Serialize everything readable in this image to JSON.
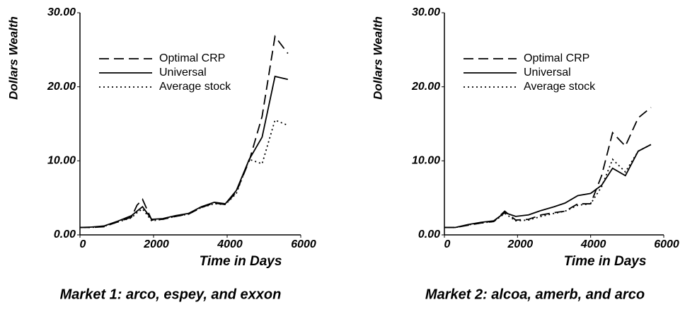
{
  "chart_data": [
    {
      "type": "line",
      "title": "Market 1: arco, espey, and exxon",
      "ylabel": "Dollars Wealth",
      "xlabel": "Time in Days",
      "x": [
        0,
        300,
        650,
        1000,
        1400,
        1550,
        1700,
        1950,
        2250,
        2600,
        2950,
        3300,
        3650,
        3950,
        4250,
        4600,
        4950,
        5300,
        5650
      ],
      "series": [
        {
          "name": "Optimal CRP",
          "color": "#000000",
          "style": "dashed",
          "values": [
            1.0,
            1.0,
            1.1,
            1.7,
            2.4,
            4.0,
            4.8,
            2.0,
            2.1,
            2.5,
            2.8,
            3.7,
            4.3,
            4.1,
            5.8,
            10.0,
            16.0,
            26.8,
            24.5
          ]
        },
        {
          "name": "Universal",
          "color": "#000000",
          "style": "solid",
          "values": [
            1.0,
            1.05,
            1.2,
            1.8,
            2.6,
            3.2,
            3.8,
            2.1,
            2.2,
            2.6,
            2.9,
            3.8,
            4.4,
            4.2,
            6.0,
            10.2,
            13.2,
            21.4,
            21.0
          ]
        },
        {
          "name": "Average stock",
          "color": "#000000",
          "style": "dotted",
          "values": [
            1.0,
            1.0,
            1.15,
            1.7,
            2.3,
            3.0,
            3.5,
            1.9,
            2.1,
            2.5,
            2.8,
            3.7,
            4.2,
            4.1,
            5.6,
            10.2,
            9.6,
            15.5,
            14.8
          ]
        }
      ],
      "xlim": [
        0,
        6000
      ],
      "xticks": [
        0,
        2000,
        4000,
        6000
      ],
      "ylim": [
        0,
        30
      ],
      "yticks": [
        {
          "value": 0,
          "label": "0.00"
        },
        {
          "value": 10,
          "label": "10.00"
        },
        {
          "value": 20,
          "label": "20.00"
        },
        {
          "value": 30,
          "label": "30.00"
        }
      ],
      "grid": false,
      "legend": "upper-left"
    },
    {
      "type": "line",
      "title": "Market 2: alcoa, amerb, and arco",
      "ylabel": "Dollars Wealth",
      "xlabel": "Time in Days",
      "x": [
        0,
        300,
        650,
        1000,
        1350,
        1650,
        1950,
        2300,
        2650,
        3000,
        3300,
        3650,
        4000,
        4300,
        4600,
        4950,
        5300,
        5650
      ],
      "series": [
        {
          "name": "Optimal CRP",
          "color": "#000000",
          "style": "dashed",
          "values": [
            1.0,
            1.0,
            1.3,
            1.6,
            1.8,
            3.2,
            2.0,
            2.1,
            2.7,
            3.0,
            3.2,
            4.2,
            4.2,
            8.0,
            13.8,
            12.0,
            15.8,
            17.2
          ]
        },
        {
          "name": "Universal",
          "color": "#000000",
          "style": "solid",
          "values": [
            1.0,
            1.0,
            1.4,
            1.7,
            1.9,
            3.0,
            2.5,
            2.7,
            3.3,
            3.8,
            4.3,
            5.3,
            5.6,
            6.7,
            9.0,
            8.0,
            11.3,
            12.2
          ]
        },
        {
          "name": "Average stock",
          "color": "#000000",
          "style": "dotted",
          "values": [
            1.0,
            1.0,
            1.35,
            1.6,
            1.8,
            2.9,
            1.9,
            2.0,
            2.5,
            2.9,
            3.2,
            4.0,
            4.2,
            6.5,
            10.2,
            8.5,
            11.3,
            12.2
          ]
        }
      ],
      "xlim": [
        0,
        6000
      ],
      "xticks": [
        0,
        2000,
        4000,
        6000
      ],
      "ylim": [
        0,
        30
      ],
      "yticks": [
        {
          "value": 0,
          "label": "0.00"
        },
        {
          "value": 10,
          "label": "10.00"
        },
        {
          "value": 20,
          "label": "20.00"
        },
        {
          "value": 30,
          "label": "30.00"
        }
      ],
      "grid": false,
      "legend": "upper-left"
    }
  ]
}
